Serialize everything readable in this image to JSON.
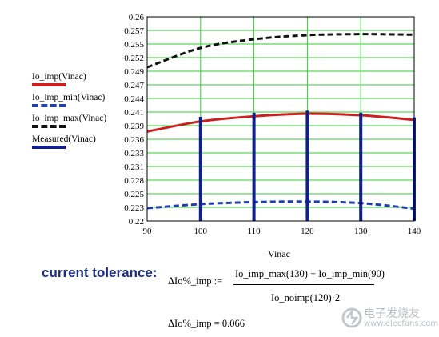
{
  "chart_data": {
    "type": "line",
    "xlabel": "Vinac",
    "x_ticks": [
      "90",
      "100",
      "110",
      "120",
      "130",
      "140"
    ],
    "y_ticks": [
      "0.22",
      "0.223",
      "0.225",
      "0.228",
      "0.231",
      "0.233",
      "0.236",
      "0.239",
      "0.241",
      "0.244",
      "0.247",
      "0.249",
      "0.252",
      "0.255",
      "0.257",
      "0.26"
    ],
    "xlim": [
      90,
      140
    ],
    "ylim": [
      0.22,
      0.26
    ],
    "grid": true,
    "legend_position": "left",
    "series": [
      {
        "name": "Io_imp(Vinac)",
        "color": "#cc1f1f",
        "style": "solid",
        "x": [
          90,
          100,
          110,
          120,
          130,
          140
        ],
        "y": [
          0.2375,
          0.2395,
          0.2405,
          0.241,
          0.2407,
          0.2398
        ]
      },
      {
        "name": "Io_imp_min(Vinac)",
        "color": "#1f3fb0",
        "style": "dashed",
        "x": [
          90,
          100,
          110,
          120,
          130,
          140
        ],
        "y": [
          0.2225,
          0.2233,
          0.2237,
          0.2238,
          0.2235,
          0.2224
        ]
      },
      {
        "name": "Io_imp_max(Vinac)",
        "color": "#111111",
        "style": "dashed",
        "x": [
          90,
          100,
          110,
          120,
          130,
          140
        ],
        "y": [
          0.2501,
          0.2539,
          0.2556,
          0.2564,
          0.2566,
          0.2565
        ]
      },
      {
        "name": "Measured(Vinac)",
        "color": "#10208a",
        "style": "stem",
        "x": [
          100,
          110,
          120,
          130,
          140
        ],
        "y": [
          0.2404,
          0.2412,
          0.2416,
          0.2412,
          0.2403
        ]
      }
    ]
  },
  "heading": "current tolerance:",
  "equation": {
    "lhs": "ΔIo%_imp :=",
    "numerator": "Io_imp_max(130) − Io_imp_min(90)",
    "denominator": "Io_noimp(120)·2",
    "result": "ΔIo%_imp = 0.066"
  },
  "watermark": {
    "text": "电子发烧友",
    "url": "www.elecfans.com"
  }
}
